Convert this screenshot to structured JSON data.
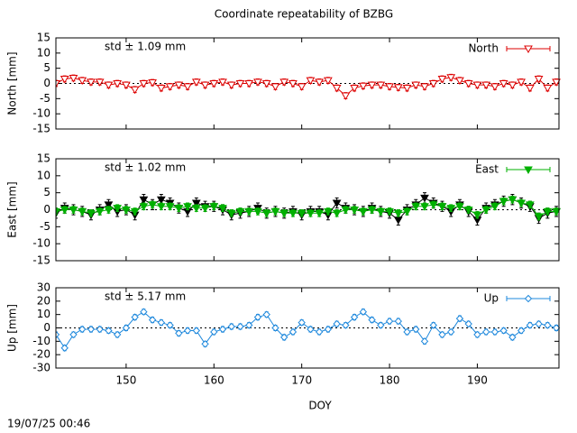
{
  "title": "Coordinate repeatability of BZBG",
  "timestamp": "19/07/25 00:46",
  "chart_data": [
    {
      "type": "line",
      "y_label": "North [mm]",
      "annotation": "std ± 1.09 mm",
      "x": [
        142,
        143,
        144,
        145,
        146,
        147,
        148,
        149,
        150,
        151,
        152,
        153,
        154,
        155,
        156,
        157,
        158,
        159,
        160,
        161,
        162,
        163,
        164,
        165,
        166,
        167,
        168,
        169,
        170,
        171,
        172,
        173,
        174,
        175,
        176,
        177,
        178,
        179,
        180,
        181,
        182,
        183,
        184,
        185,
        186,
        187,
        188,
        189,
        190,
        191,
        192,
        193,
        194,
        195,
        196,
        197,
        198,
        199
      ],
      "xlim": [
        142,
        199.3
      ],
      "xticks": [
        150,
        160,
        170,
        180,
        190
      ],
      "ylim": [
        -15,
        15
      ],
      "yticks": [
        -15,
        -10,
        -5,
        0,
        5,
        10,
        15
      ],
      "zero_line": true,
      "series": [
        {
          "name": "North",
          "color": "#dd0000",
          "marker": "triangle-open",
          "yerr": 1,
          "values": [
            0,
            1.5,
            1.8,
            1,
            0.5,
            0.5,
            -0.5,
            0,
            -0.5,
            -2,
            0,
            0.3,
            -1.5,
            -1,
            -0.5,
            -1,
            0.5,
            -0.5,
            0,
            0.5,
            -0.5,
            0,
            0,
            0.5,
            0,
            -1,
            0.5,
            0,
            -1,
            1,
            0.5,
            1,
            -1.5,
            -4,
            -1.5,
            -0.8,
            -0.5,
            -0.5,
            -1,
            -1.3,
            -1.5,
            -0.5,
            -1,
            0,
            1.5,
            2,
            1,
            0,
            -0.5,
            -0.5,
            -1,
            0,
            -0.5,
            0.5,
            -1.5,
            1.5,
            -1.5,
            0.5
          ]
        }
      ]
    },
    {
      "type": "line",
      "y_label": "East [mm]",
      "annotation": "std ± 1.02 mm",
      "x": [
        142,
        143,
        144,
        145,
        146,
        147,
        148,
        149,
        150,
        151,
        152,
        153,
        154,
        155,
        156,
        157,
        158,
        159,
        160,
        161,
        162,
        163,
        164,
        165,
        166,
        167,
        168,
        169,
        170,
        171,
        172,
        173,
        174,
        175,
        176,
        177,
        178,
        179,
        180,
        181,
        182,
        183,
        184,
        185,
        186,
        187,
        188,
        189,
        190,
        191,
        192,
        193,
        194,
        195,
        196,
        197,
        198,
        199
      ],
      "xlim": [
        142,
        199.3
      ],
      "xticks": [
        150,
        160,
        170,
        180,
        190
      ],
      "ylim": [
        -15,
        15
      ],
      "yticks": [
        -15,
        -10,
        -5,
        0,
        5,
        10,
        15
      ],
      "zero_line": true,
      "series": [
        {
          "color": "#000000",
          "marker": "triangle-filled",
          "yerr": 1.5,
          "values": [
            -1,
            0.5,
            0,
            -0.5,
            -1.5,
            0,
            1.5,
            -0.5,
            0,
            -1.5,
            3,
            1.5,
            3,
            2,
            0.5,
            -0.5,
            2,
            1,
            1,
            0,
            -1.5,
            -1,
            -0.5,
            0.5,
            -1,
            -0.5,
            -1,
            -0.5,
            -1.5,
            -0.5,
            -0.5,
            -1.5,
            2,
            0.5,
            0,
            -0.5,
            0.5,
            -0.5,
            -1,
            -3,
            0,
            1.5,
            3.5,
            2,
            1,
            -0.5,
            1.5,
            -0.5,
            -3,
            0.5,
            1.5,
            2.5,
            3,
            2,
            1,
            -2.5,
            -1,
            -0.5
          ]
        },
        {
          "name": "East",
          "color": "#00b000",
          "marker": "triangle-filled",
          "yerr": 1,
          "values": [
            -0.5,
            0,
            0,
            -0.5,
            -1,
            -0.5,
            0,
            0.5,
            0,
            -0.5,
            1,
            1.5,
            1,
            1,
            0.5,
            1,
            0.5,
            0.5,
            1,
            0.5,
            -1,
            -0.5,
            -0.5,
            -0.5,
            -1,
            -0.5,
            -1,
            -1,
            -1,
            -1,
            -1,
            -0.5,
            -1,
            0,
            0,
            -0.5,
            0,
            -0.5,
            -0.5,
            -1,
            -0.5,
            1,
            1,
            1.5,
            1,
            0.5,
            1,
            0,
            -1.5,
            0,
            1,
            2.5,
            3,
            2,
            1.5,
            -2,
            -0.5,
            -0.5
          ]
        }
      ]
    },
    {
      "type": "line",
      "y_label": "Up [mm]",
      "annotation": "std ± 5.17 mm",
      "x_label": "DOY",
      "x": [
        142,
        143,
        144,
        145,
        146,
        147,
        148,
        149,
        150,
        151,
        152,
        153,
        154,
        155,
        156,
        157,
        158,
        159,
        160,
        161,
        162,
        163,
        164,
        165,
        166,
        167,
        168,
        169,
        170,
        171,
        172,
        173,
        174,
        175,
        176,
        177,
        178,
        179,
        180,
        181,
        182,
        183,
        184,
        185,
        186,
        187,
        188,
        189,
        190,
        191,
        192,
        193,
        194,
        195,
        196,
        197,
        198,
        199
      ],
      "xlim": [
        142,
        199.3
      ],
      "xticks": [
        150,
        160,
        170,
        180,
        190
      ],
      "ylim": [
        -30,
        30
      ],
      "yticks": [
        -30,
        -20,
        -10,
        0,
        10,
        20,
        30
      ],
      "zero_line": true,
      "series": [
        {
          "name": "Up",
          "color": "#1e88dc",
          "marker": "diamond-open",
          "yerr": 2,
          "values": [
            -5,
            -15,
            -5,
            -1,
            -1,
            -1,
            -2,
            -5,
            0,
            8,
            12,
            6,
            4,
            2,
            -4,
            -2,
            -2,
            -12,
            -3,
            -1,
            1,
            1,
            2,
            8,
            10,
            0,
            -7,
            -3,
            4,
            -1,
            -3,
            -1,
            3,
            2,
            8,
            12,
            6,
            2,
            5,
            5,
            -3,
            -1,
            -10,
            2,
            -5,
            -3,
            7,
            3,
            -5,
            -3,
            -3,
            -2,
            -7,
            -2,
            2,
            3,
            2,
            0
          ]
        }
      ]
    }
  ]
}
